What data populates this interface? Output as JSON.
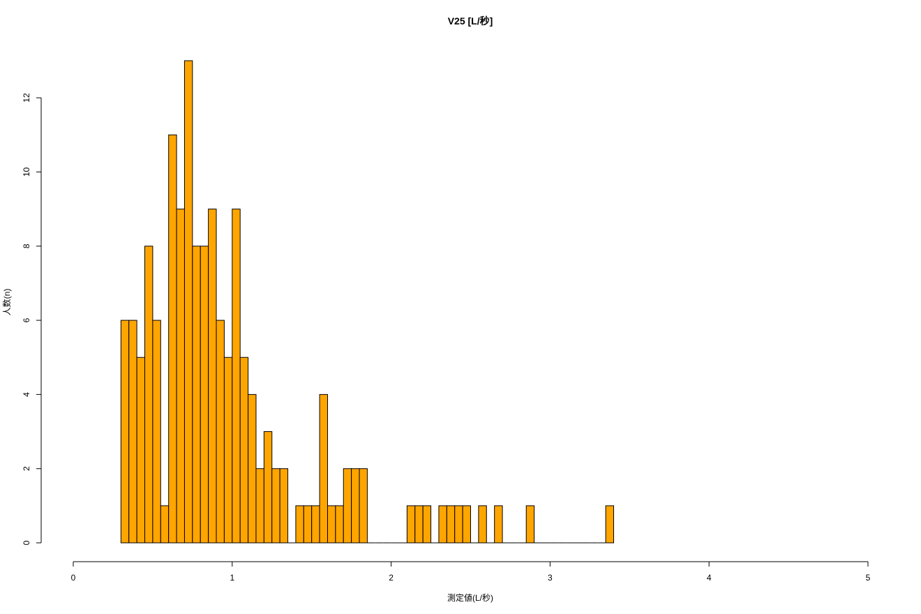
{
  "chart_data": {
    "type": "bar",
    "title": "V25 [L/秒]",
    "xlabel": "測定値(L/秒)",
    "ylabel": "人数(n)",
    "xlim": [
      0,
      5
    ],
    "ylim": [
      0,
      13
    ],
    "x_ticks": [
      0,
      1,
      2,
      3,
      4,
      5
    ],
    "y_ticks": [
      0,
      2,
      4,
      6,
      8,
      10,
      12
    ],
    "bin_width": 0.05,
    "bin_start": 0.3,
    "bar_color": "#FFA500",
    "grid": false,
    "counts": [
      6,
      6,
      5,
      8,
      6,
      1,
      11,
      9,
      13,
      8,
      8,
      9,
      6,
      5,
      9,
      5,
      4,
      2,
      3,
      2,
      2,
      0,
      1,
      1,
      1,
      4,
      1,
      1,
      2,
      2,
      2,
      0,
      0,
      0,
      0,
      0,
      1,
      1,
      1,
      0,
      1,
      1,
      1,
      1,
      0,
      1,
      0,
      1,
      0,
      0,
      0,
      1,
      0,
      0,
      0,
      0,
      0,
      0,
      0,
      0,
      0,
      1
    ]
  }
}
